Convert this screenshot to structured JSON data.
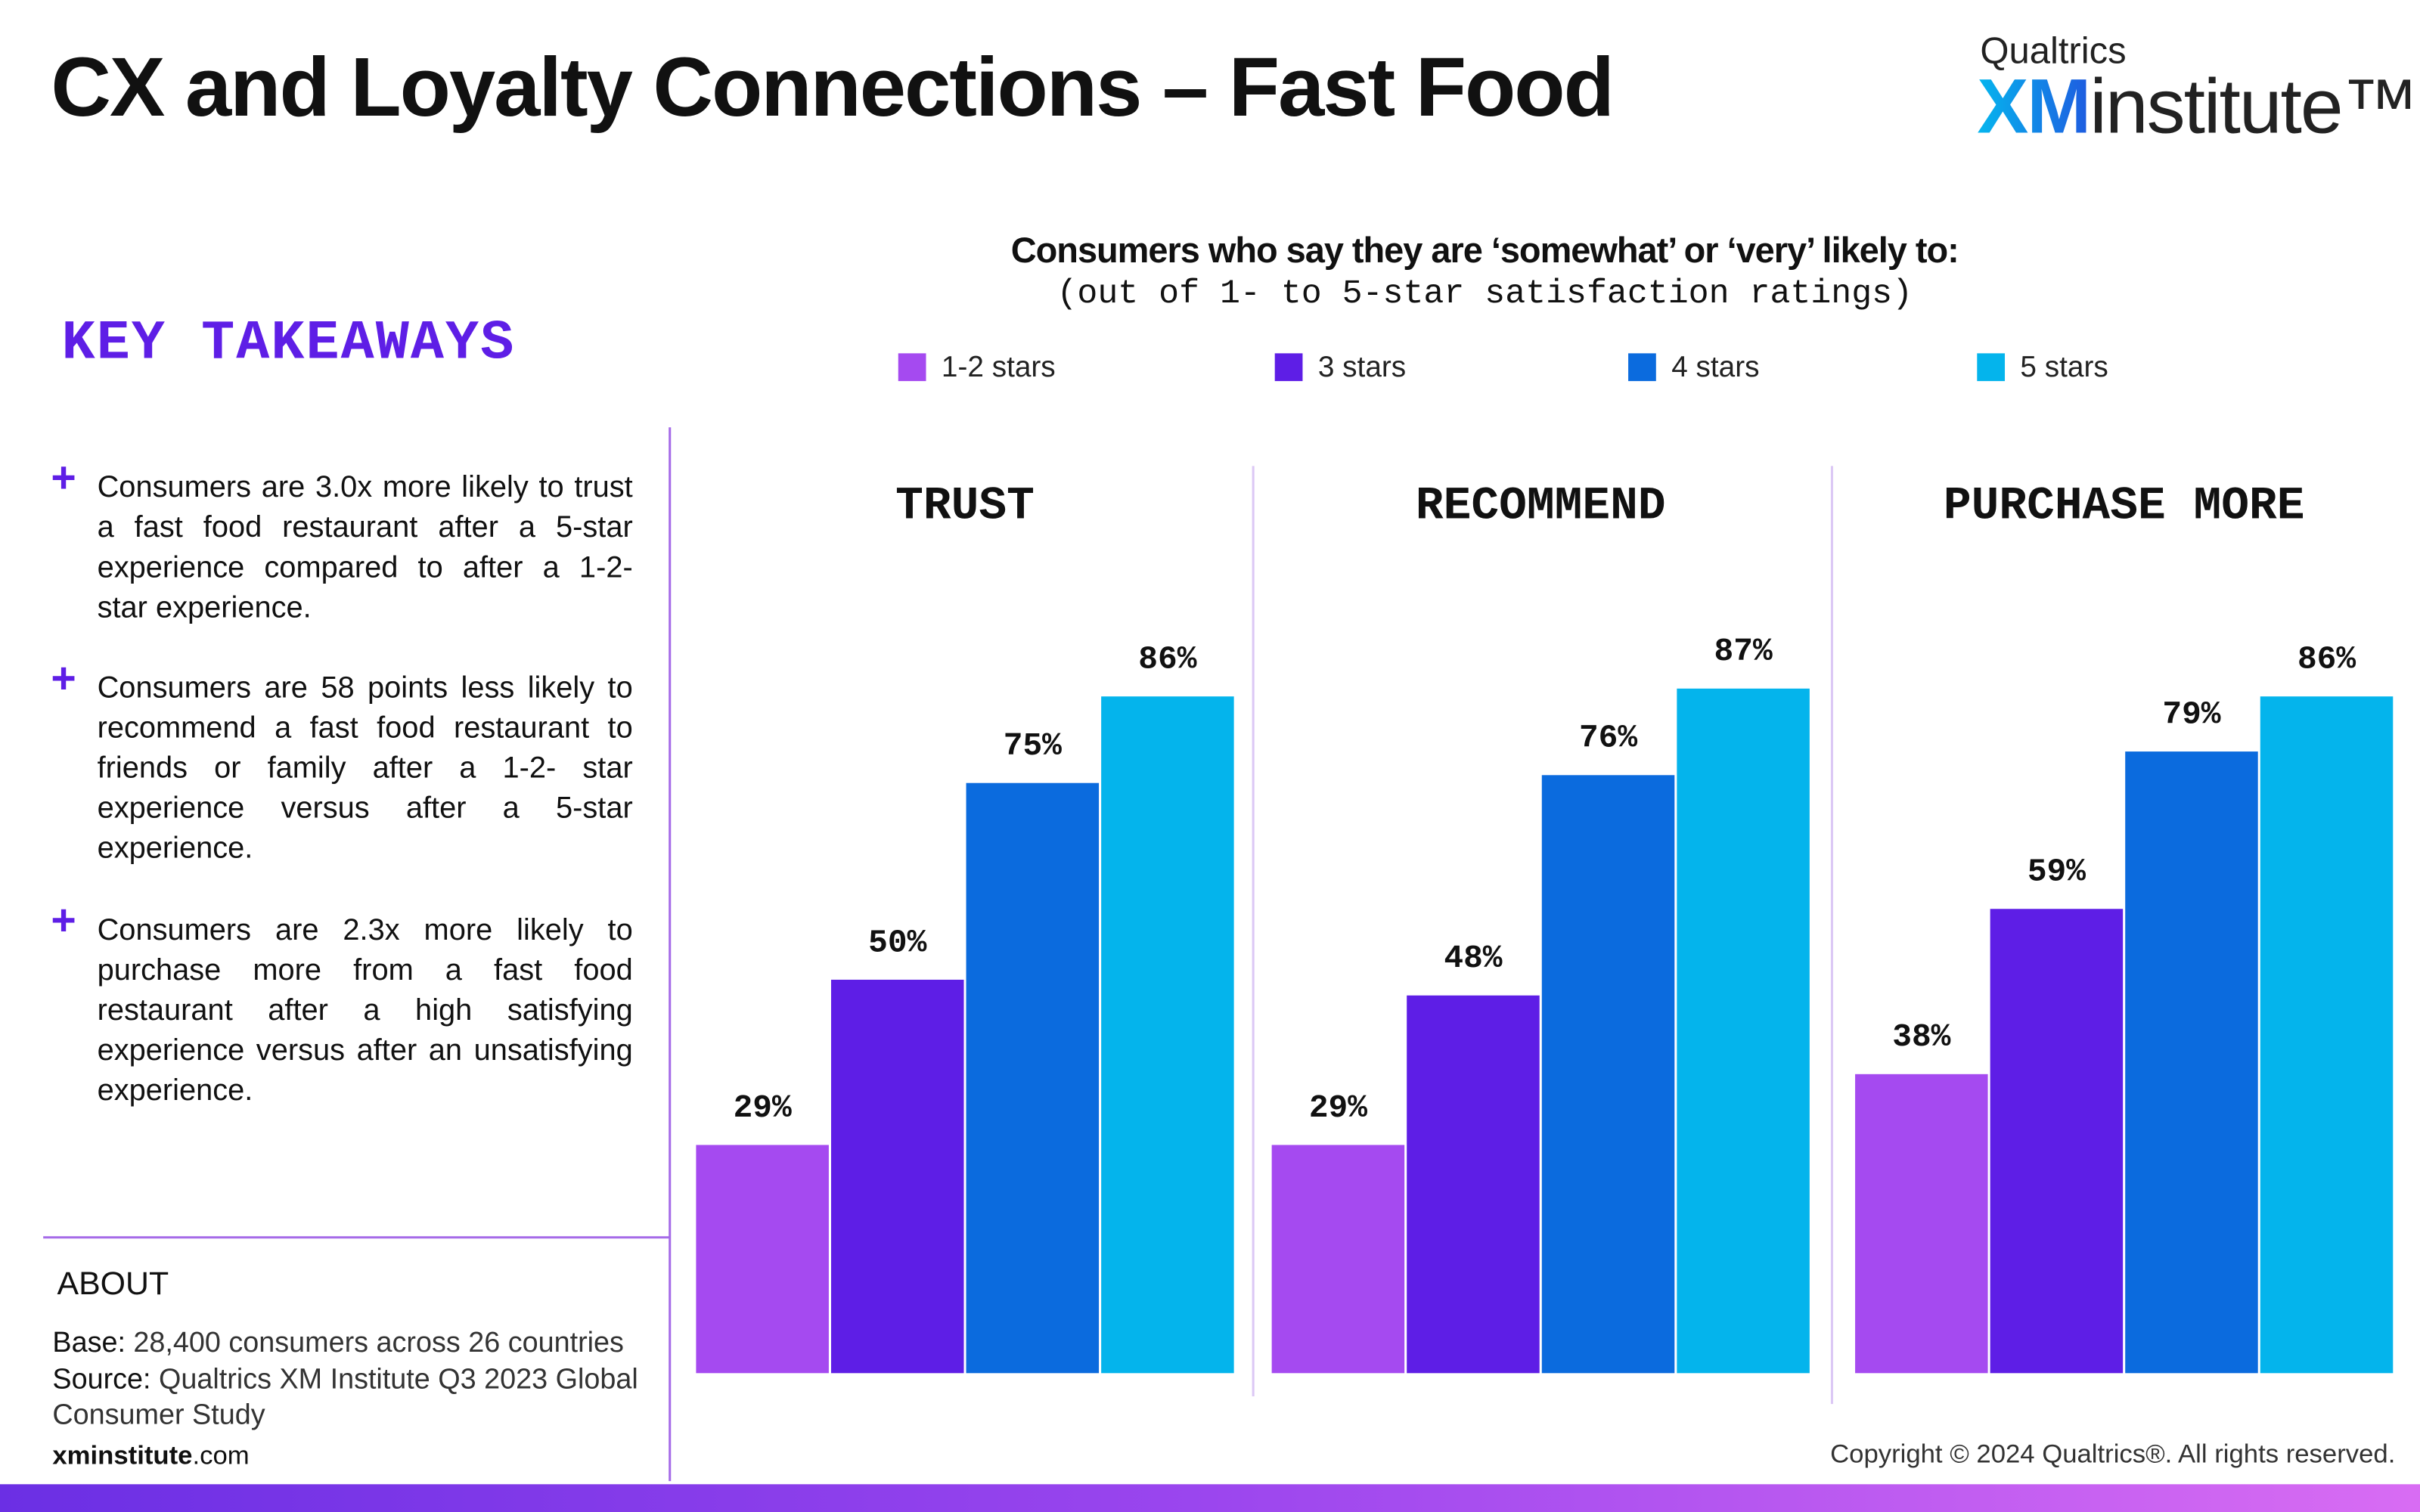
{
  "header": {
    "title": "CX and Loyalty Connections – Fast Food",
    "logo_top": "Qualtrics",
    "logo_xm": "XM",
    "logo_rest": "institute™"
  },
  "takeaways": {
    "heading": "KEY TAKEAWAYS",
    "items": [
      "Consumers are 3.0x more likely to trust a fast food restaurant after a 5-star experience compared to after a 1-2- star experience.",
      "Consumers are 58 points less likely to recommend a fast food restaurant to friends or family after a 1-2- star experience versus after a 5-star experience.",
      "Consumers are 2.3x more likely to purchase more from a fast food restaurant after a high satisfying experience versus after an unsatisfying experience."
    ]
  },
  "about": {
    "heading": "ABOUT",
    "base_label": "Base:",
    "base": "28,400 consumers across 26 countries",
    "source_label": "Source:",
    "source": "Qualtrics XM Institute Q3 2023 Global Consumer Study",
    "site_bold": "xminstitute",
    "site_rest": ".com"
  },
  "footer": {
    "copyright": "Copyright © 2024 Qualtrics®. All rights reserved."
  },
  "subtitle": "Consumers who say they are ‘somewhat’ or ‘very’ likely to:",
  "subtitle_note": "(out of 1- to 5-star satisfaction ratings)",
  "legend": [
    {
      "name": "1-2 stars",
      "color": "#a54af0"
    },
    {
      "name": "3 stars",
      "color": "#5e1ee6"
    },
    {
      "name": "4 stars",
      "color": "#0b6bde"
    },
    {
      "name": "5 stars",
      "color": "#04b4ec"
    }
  ],
  "chart_data": [
    {
      "type": "bar",
      "title": "TRUST",
      "values": [
        29,
        50,
        75,
        86
      ],
      "value_labels": [
        "29%",
        "50%",
        "75%",
        "86%"
      ],
      "ylim": [
        0,
        100
      ]
    },
    {
      "type": "bar",
      "title": "RECOMMEND",
      "values": [
        29,
        48,
        76,
        87
      ],
      "value_labels": [
        "29%",
        "48%",
        "76%",
        "87%"
      ],
      "ylim": [
        0,
        100
      ]
    },
    {
      "type": "bar",
      "title": "PURCHASE MORE",
      "values": [
        38,
        59,
        79,
        86
      ],
      "value_labels": [
        "38%",
        "59%",
        "79%",
        "86%"
      ],
      "ylim": [
        0,
        100
      ]
    }
  ]
}
